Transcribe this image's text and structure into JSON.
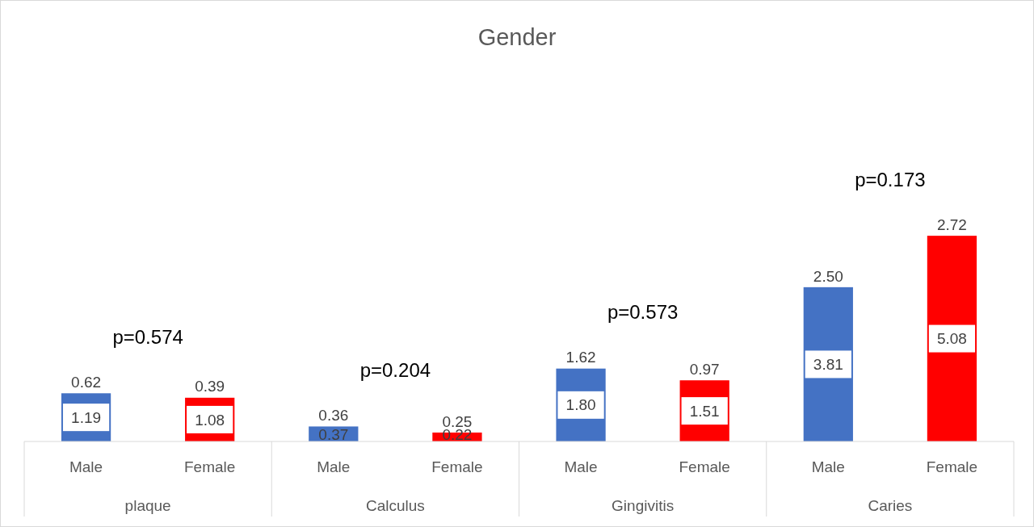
{
  "chart_data": {
    "type": "bar",
    "title": "Gender",
    "tick_labels": "x",
    "categories": [
      "Male",
      "Female",
      "Male",
      "Female",
      "Male",
      "Female",
      "Male",
      "Female"
    ],
    "series": [
      {
        "colors": [
          "#4472c4",
          "#ff0000",
          "#4472c4",
          "#ff0000",
          "#4472c4",
          "#ff0000",
          "#4472c4",
          "#ff0000"
        ],
        "values": [
          1.19,
          1.08,
          0.37,
          0.22,
          1.8,
          1.51,
          3.81,
          5.08
        ],
        "value_labels": [
          "1.19",
          "1.08",
          "0.37",
          "0.22",
          "1.80",
          "1.51",
          "3.81",
          "5.08"
        ]
      }
    ],
    "annotations": [
      "plaque",
      "Calculus",
      "Gingivitis",
      "Caries",
      "p=0.574",
      "p=0.204",
      "p=0.573",
      "p=0.173",
      "0.62",
      "0.39",
      "0.36",
      "0.25",
      "1.62",
      "0.97",
      "2.50",
      "2.72"
    ]
  }
}
